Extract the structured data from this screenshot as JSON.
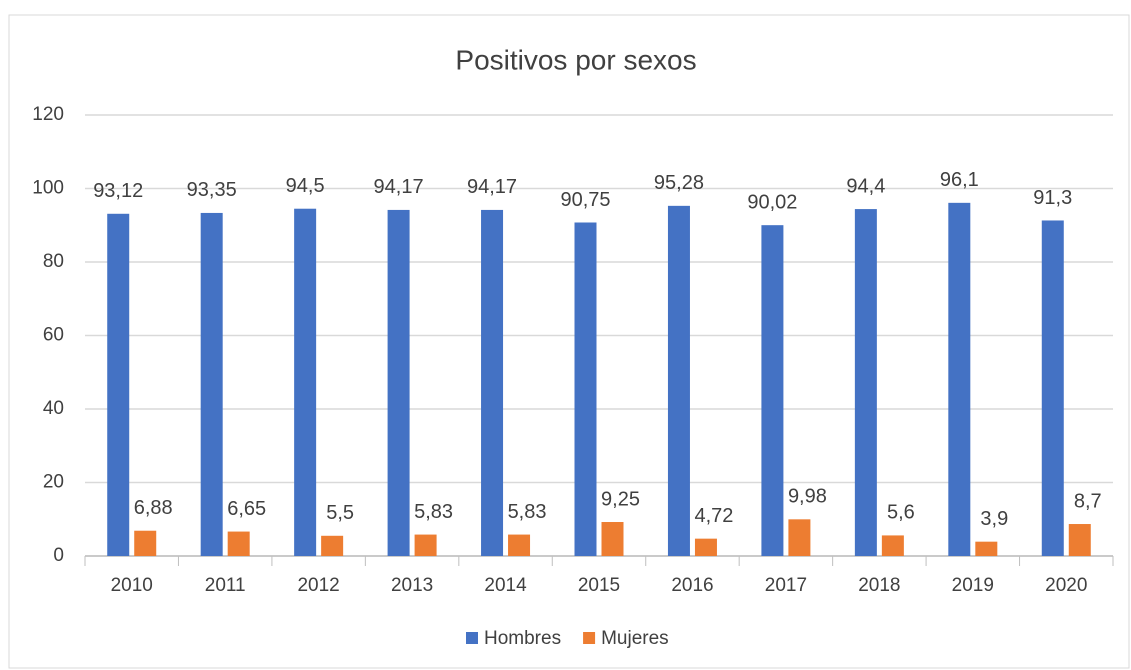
{
  "chart_data": {
    "type": "bar",
    "title": "Positivos por sexos",
    "categories": [
      "2010",
      "2011",
      "2012",
      "2013",
      "2014",
      "2015",
      "2016",
      "2017",
      "2018",
      "2019",
      "2020"
    ],
    "series": [
      {
        "name": "Hombres",
        "color": "#4472c4",
        "values": [
          93.12,
          93.35,
          94.5,
          94.17,
          94.17,
          90.75,
          95.28,
          90.02,
          94.4,
          96.1,
          91.3
        ],
        "value_labels": [
          "93,12",
          "93,35",
          "94,5",
          "94,17",
          "94,17",
          "90,75",
          "95,28",
          "90,02",
          "94,4",
          "96,1",
          "91,3"
        ]
      },
      {
        "name": "Mujeres",
        "color": "#ed7d31",
        "values": [
          6.88,
          6.65,
          5.5,
          5.83,
          5.83,
          9.25,
          4.72,
          9.98,
          5.6,
          3.9,
          8.7
        ],
        "value_labels": [
          "6,88",
          "6,65",
          "5,5",
          "5,83",
          "5,83",
          "9,25",
          "4,72",
          "9,98",
          "5,6",
          "3,9",
          "8,7"
        ]
      }
    ],
    "ylim": [
      0,
      120
    ],
    "yticks": [
      0,
      20,
      40,
      60,
      80,
      100,
      120
    ],
    "grid": true,
    "legend": "bottom"
  }
}
